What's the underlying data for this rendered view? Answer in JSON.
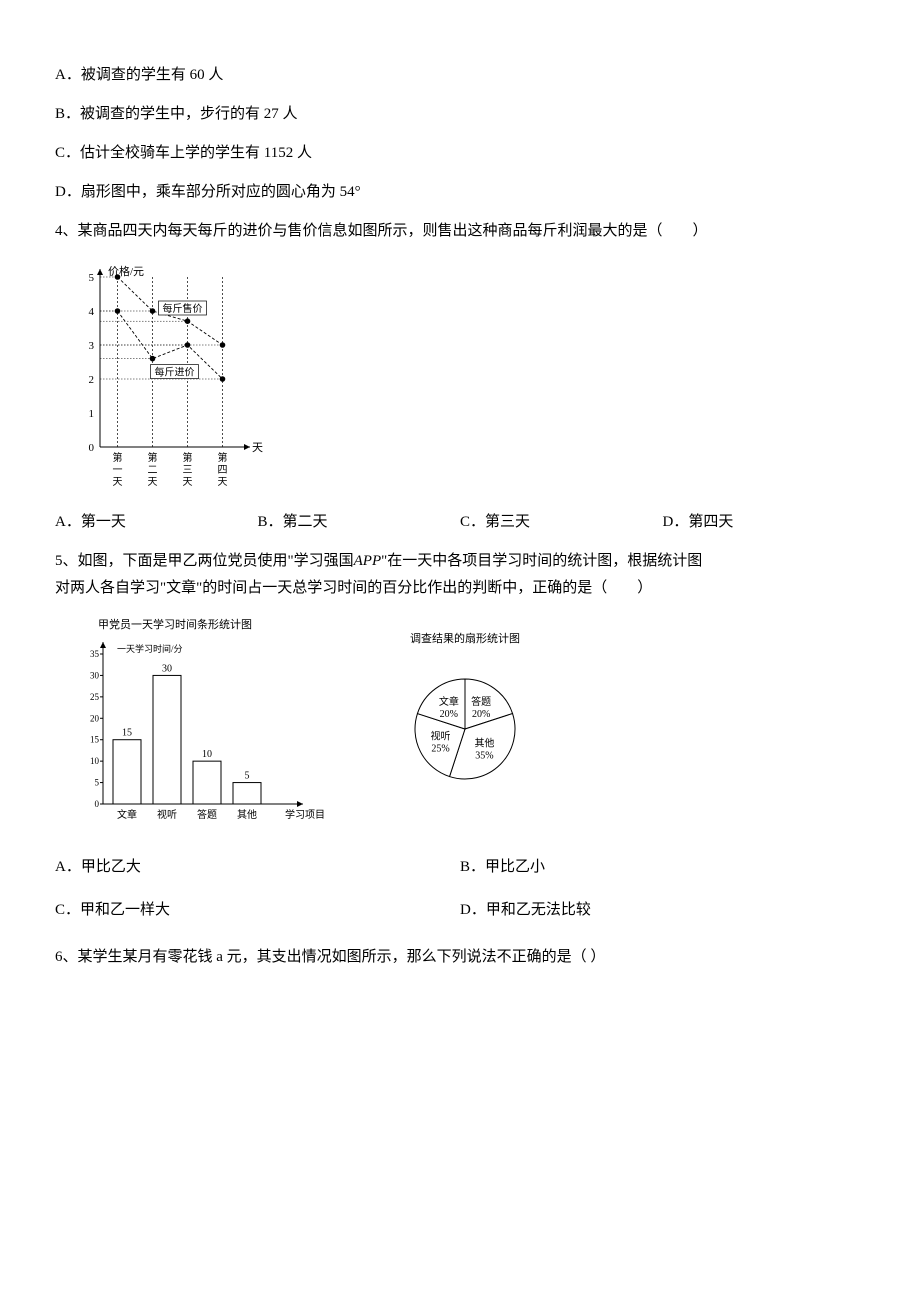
{
  "opts3": {
    "A": "A．被调查的学生有 60 人",
    "B": "B．被调查的学生中，步行的有 27 人",
    "C": "C．估计全校骑车上学的学生有 1152 人",
    "D": "D．扇形图中，乘车部分所对应的圆心角为 54°"
  },
  "q4": {
    "text": "4、某商品四天内每天每斤的进价与售价信息如图所示，则售出这种商品每斤利润最大的是（　　）",
    "chart": {
      "xlabel": "天",
      "ylabel": "价格/元",
      "xticks": [
        "第一天",
        "第二天",
        "第三天",
        "第四天"
      ],
      "yticks": [
        0,
        1,
        2,
        3,
        4,
        5
      ],
      "series": [
        {
          "label": "每斤售价",
          "points": [
            5,
            4,
            3.7,
            3
          ]
        },
        {
          "label": "每斤进价",
          "points": [
            4,
            2.6,
            3,
            2
          ]
        }
      ],
      "line_color": "#000000",
      "grid_color": "#000000",
      "background_color": "#ffffff"
    },
    "options": {
      "A": "A．第一天",
      "B": "B．第二天",
      "C": "C．第三天",
      "D": "D．第四天"
    }
  },
  "q5": {
    "text_l1": "5、如图，下面是甲乙两位党员使用\"学习强国",
    "text_app": "APP",
    "text_l1b": "\"在一天中各项目学习时间的统计图，根据统计图",
    "text_l2": "对两人各自学习\"文章\"的时间占一天总学习时间的百分比作出的判断中，正确的是（　　）",
    "bar": {
      "title": "甲党员一天学习时间条形统计图",
      "ylabel": "一天学习时间/分",
      "xlabel": "学习项目",
      "categories": [
        "文章",
        "视听",
        "答题",
        "其他"
      ],
      "values": [
        15,
        30,
        10,
        5
      ],
      "yticks": [
        0,
        5,
        10,
        15,
        20,
        25,
        30,
        35
      ],
      "bar_fill": "#ffffff",
      "bar_stroke": "#000000"
    },
    "pie": {
      "title": "调查结果的扇形统计图",
      "slices": [
        {
          "label": "文章",
          "pct": 20
        },
        {
          "label": "答题",
          "pct": 20
        },
        {
          "label": "其他",
          "pct": 35
        },
        {
          "label": "视听",
          "pct": 25
        }
      ],
      "fill": "#ffffff",
      "stroke": "#000000"
    },
    "options": {
      "A": "A．甲比乙大",
      "B": "B．甲比乙小",
      "C": "C．甲和乙一样大",
      "D": "D．甲和乙无法比较"
    }
  },
  "q6": {
    "text": "6、某学生某月有零花钱 a 元，其支出情况如图所示，那么下列说法不正确的是（ ）"
  }
}
